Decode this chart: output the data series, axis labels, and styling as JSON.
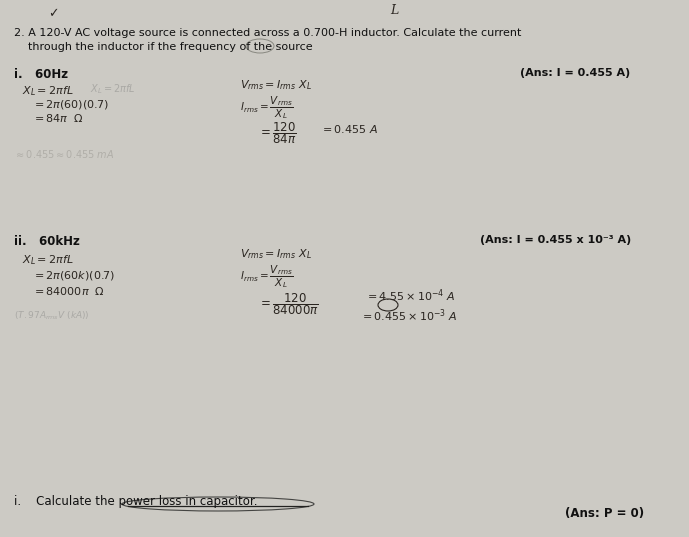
{
  "bg_color": "#cccac4",
  "title_line1": "2. A 120-V AC voltage source is connected across a 0.700-H inductor. Calculate the current",
  "title_line2": "    through the inductor if the frequency of the source",
  "checkmark": "✓",
  "L_label": "L",
  "part_i_label": "i.   60Hz",
  "part_i_ans": "(Ans: I = 0.455 A)",
  "part_ii_label": "ii.   60kHz",
  "part_ii_ans": "(Ans: I = 0.455 x 10⁻³ A)",
  "part_iii_label": "i.    Calculate the power loss in capacitor.",
  "part_iii_ans": "(Ans: P = 0)",
  "text_color": "#2a2520",
  "ans_color": "#111111"
}
